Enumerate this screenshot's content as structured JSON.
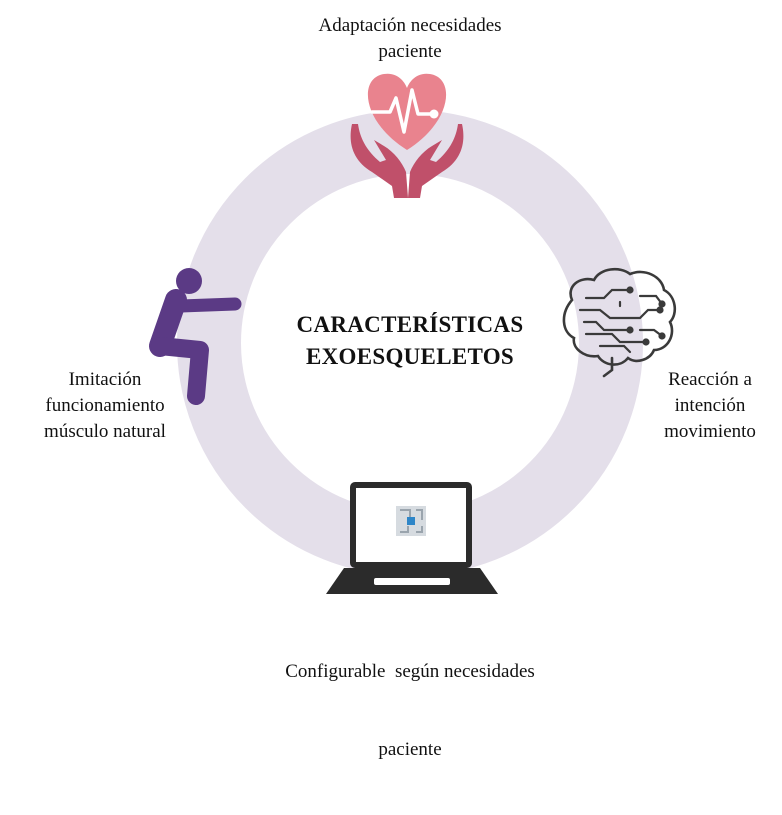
{
  "diagram": {
    "center_title": [
      "CARACTERÍSTICAS",
      "EXOESQUELETOS"
    ],
    "features": {
      "top": [
        "Adaptación necesidades",
        "paciente"
      ],
      "right": [
        "Reacción a",
        "intención",
        "movimiento"
      ],
      "bottom": [
        "Configurable  según necesidades",
        "paciente"
      ],
      "left": [
        "Imitación",
        "funcionamiento",
        "músculo natural"
      ]
    },
    "icons": {
      "top": "heart-hands-icon",
      "right": "circuit-brain-icon",
      "bottom": "laptop-chip-icon",
      "left": "squatting-person-icon"
    },
    "colors": {
      "ring": "#e4dfea",
      "heart": "#e9838e",
      "hands": "#c0506a",
      "person": "#5b3a85",
      "laptop": "#2b2b2b"
    }
  }
}
